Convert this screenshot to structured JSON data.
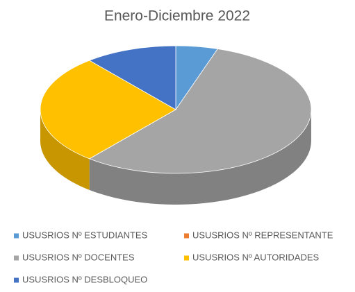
{
  "chart_data": {
    "type": "pie",
    "title": "Enero-Diciembre 2022",
    "categories": [
      "USUSRIOS Nº ESTUDIANTES",
      "USUSRIOS Nº REPRESENTANTE",
      "USUSRIOS Nº DOCENTES",
      "USUSRIOS Nº AUTORIDADES",
      "USUSRIOS Nº DESBLOQUEO"
    ],
    "values": [
      5,
      0,
      56,
      28,
      11
    ],
    "colors": [
      "#5b9bd5",
      "#ed7d31",
      "#a5a5a5",
      "#ffc000",
      "#4472c4"
    ],
    "legend": "bottom"
  }
}
